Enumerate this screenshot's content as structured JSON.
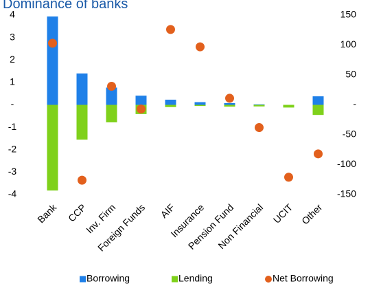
{
  "chart_data": {
    "type": "bar",
    "title": "Dominance of banks",
    "categories": [
      "Bank",
      "CCP",
      "Inv. Firm",
      "Foreign Funds",
      "AIF",
      "Insurance",
      "Pension Fund",
      "Non Financial",
      "UCIT",
      "Other"
    ],
    "series": [
      {
        "name": "Borrowing",
        "type": "bar",
        "marker": "square",
        "color": "#1f80e8",
        "values": [
          3.94,
          1.4,
          0.77,
          0.41,
          0.23,
          0.12,
          0.08,
          0.02,
          0,
          0.38
        ]
      },
      {
        "name": "Lending",
        "type": "bar",
        "marker": "square",
        "color": "#7fd11b",
        "values": [
          -3.82,
          -1.55,
          -0.78,
          -0.41,
          -0.1,
          -0.05,
          -0.08,
          -0.07,
          -0.12,
          -0.45
        ]
      },
      {
        "name": "Net Borrowing",
        "type": "scatter",
        "marker": "circle",
        "axis": "y2",
        "color": "#e2601d",
        "values": [
          103,
          -126,
          31,
          -7,
          126,
          97,
          11,
          -38,
          -121,
          -82
        ]
      }
    ],
    "ylim": [
      -4,
      4
    ],
    "yticks": [
      4,
      3,
      2,
      1,
      {
        "value": 0,
        "label": "-"
      },
      -1,
      -2,
      -3,
      -4
    ],
    "y2lim": [
      -150,
      150
    ],
    "y2ticks": [
      150,
      100,
      50,
      {
        "value": 0,
        "label": "-"
      },
      -50,
      -100,
      -150
    ],
    "grid": false,
    "legend": "bottom"
  }
}
